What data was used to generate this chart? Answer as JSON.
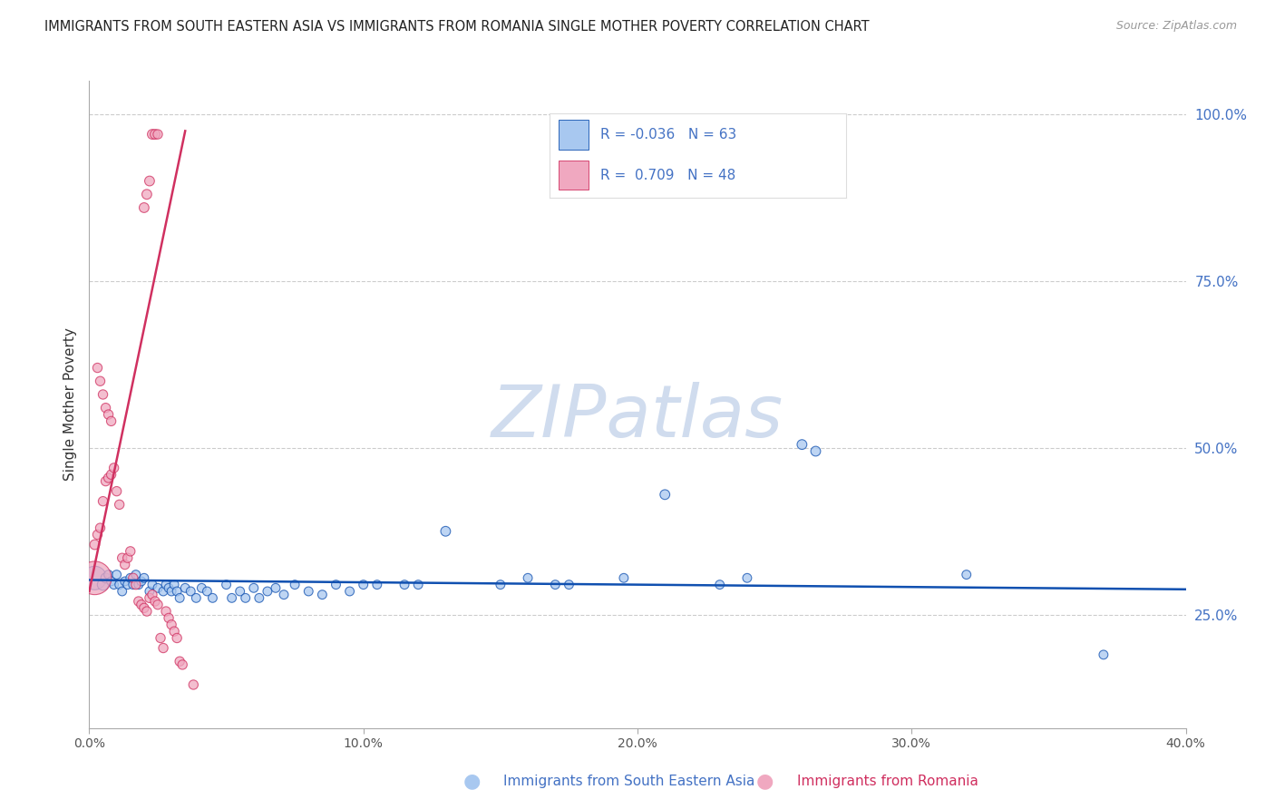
{
  "title": "IMMIGRANTS FROM SOUTH EASTERN ASIA VS IMMIGRANTS FROM ROMANIA SINGLE MOTHER POVERTY CORRELATION CHART",
  "source": "Source: ZipAtlas.com",
  "ylabel": "Single Mother Poverty",
  "legend_label1": "Immigrants from South Eastern Asia",
  "legend_label2": "Immigrants from Romania",
  "R1": -0.036,
  "N1": 63,
  "R2": 0.709,
  "N2": 48,
  "color_blue": "#A8C8F0",
  "color_pink": "#F0A8C0",
  "line_color_blue": "#1050B0",
  "line_color_pink": "#D03060",
  "watermark": "ZIPatlas",
  "watermark_color": "#D0DCEE",
  "xlim": [
    0.0,
    0.4
  ],
  "ylim": [
    0.08,
    1.05
  ],
  "xticks": [
    0.0,
    0.1,
    0.2,
    0.3,
    0.4
  ],
  "xticklabels": [
    "0.0%",
    "10.0%",
    "20.0%",
    "30.0%",
    "40.0%"
  ],
  "yticks_right": [
    0.25,
    0.5,
    0.75,
    1.0
  ],
  "ytick_labels_right": [
    "25.0%",
    "50.0%",
    "75.0%",
    "100.0%"
  ],
  "blue_points": [
    [
      0.002,
      0.305,
      350
    ],
    [
      0.005,
      0.295,
      80
    ],
    [
      0.006,
      0.305,
      60
    ],
    [
      0.007,
      0.31,
      50
    ],
    [
      0.008,
      0.3,
      50
    ],
    [
      0.009,
      0.295,
      50
    ],
    [
      0.01,
      0.31,
      50
    ],
    [
      0.011,
      0.295,
      50
    ],
    [
      0.012,
      0.285,
      50
    ],
    [
      0.013,
      0.3,
      50
    ],
    [
      0.014,
      0.295,
      50
    ],
    [
      0.015,
      0.305,
      50
    ],
    [
      0.016,
      0.295,
      50
    ],
    [
      0.017,
      0.31,
      50
    ],
    [
      0.018,
      0.295,
      50
    ],
    [
      0.019,
      0.3,
      50
    ],
    [
      0.02,
      0.305,
      50
    ],
    [
      0.022,
      0.285,
      50
    ],
    [
      0.023,
      0.295,
      50
    ],
    [
      0.025,
      0.29,
      50
    ],
    [
      0.027,
      0.285,
      50
    ],
    [
      0.028,
      0.295,
      50
    ],
    [
      0.029,
      0.29,
      50
    ],
    [
      0.03,
      0.285,
      50
    ],
    [
      0.031,
      0.295,
      50
    ],
    [
      0.032,
      0.285,
      50
    ],
    [
      0.033,
      0.275,
      50
    ],
    [
      0.035,
      0.29,
      50
    ],
    [
      0.037,
      0.285,
      50
    ],
    [
      0.039,
      0.275,
      50
    ],
    [
      0.041,
      0.29,
      50
    ],
    [
      0.043,
      0.285,
      50
    ],
    [
      0.045,
      0.275,
      50
    ],
    [
      0.05,
      0.295,
      50
    ],
    [
      0.052,
      0.275,
      50
    ],
    [
      0.055,
      0.285,
      50
    ],
    [
      0.057,
      0.275,
      50
    ],
    [
      0.06,
      0.29,
      50
    ],
    [
      0.062,
      0.275,
      50
    ],
    [
      0.065,
      0.285,
      50
    ],
    [
      0.068,
      0.29,
      50
    ],
    [
      0.071,
      0.28,
      50
    ],
    [
      0.075,
      0.295,
      50
    ],
    [
      0.08,
      0.285,
      50
    ],
    [
      0.085,
      0.28,
      50
    ],
    [
      0.09,
      0.295,
      50
    ],
    [
      0.095,
      0.285,
      50
    ],
    [
      0.1,
      0.295,
      50
    ],
    [
      0.105,
      0.295,
      50
    ],
    [
      0.115,
      0.295,
      50
    ],
    [
      0.12,
      0.295,
      50
    ],
    [
      0.13,
      0.375,
      60
    ],
    [
      0.15,
      0.295,
      50
    ],
    [
      0.16,
      0.305,
      50
    ],
    [
      0.17,
      0.295,
      50
    ],
    [
      0.175,
      0.295,
      50
    ],
    [
      0.195,
      0.305,
      50
    ],
    [
      0.21,
      0.43,
      60
    ],
    [
      0.23,
      0.295,
      50
    ],
    [
      0.24,
      0.305,
      50
    ],
    [
      0.26,
      0.505,
      60
    ],
    [
      0.265,
      0.495,
      60
    ],
    [
      0.32,
      0.31,
      50
    ],
    [
      0.37,
      0.19,
      50
    ]
  ],
  "pink_points": [
    [
      0.002,
      0.355,
      60
    ],
    [
      0.003,
      0.37,
      55
    ],
    [
      0.004,
      0.38,
      55
    ],
    [
      0.005,
      0.42,
      55
    ],
    [
      0.006,
      0.45,
      55
    ],
    [
      0.007,
      0.455,
      55
    ],
    [
      0.008,
      0.46,
      55
    ],
    [
      0.009,
      0.47,
      55
    ],
    [
      0.01,
      0.435,
      55
    ],
    [
      0.011,
      0.415,
      55
    ],
    [
      0.012,
      0.335,
      55
    ],
    [
      0.013,
      0.325,
      55
    ],
    [
      0.014,
      0.335,
      55
    ],
    [
      0.015,
      0.345,
      55
    ],
    [
      0.016,
      0.305,
      55
    ],
    [
      0.017,
      0.295,
      55
    ],
    [
      0.018,
      0.27,
      55
    ],
    [
      0.019,
      0.265,
      55
    ],
    [
      0.02,
      0.26,
      55
    ],
    [
      0.021,
      0.255,
      55
    ],
    [
      0.022,
      0.275,
      55
    ],
    [
      0.023,
      0.28,
      55
    ],
    [
      0.024,
      0.27,
      55
    ],
    [
      0.025,
      0.265,
      55
    ],
    [
      0.026,
      0.215,
      55
    ],
    [
      0.027,
      0.2,
      55
    ],
    [
      0.028,
      0.255,
      55
    ],
    [
      0.029,
      0.245,
      55
    ],
    [
      0.03,
      0.235,
      55
    ],
    [
      0.031,
      0.225,
      55
    ],
    [
      0.032,
      0.215,
      55
    ],
    [
      0.033,
      0.18,
      55
    ],
    [
      0.034,
      0.175,
      55
    ],
    [
      0.002,
      0.305,
      700
    ],
    [
      0.003,
      0.62,
      55
    ],
    [
      0.004,
      0.6,
      55
    ],
    [
      0.005,
      0.58,
      55
    ],
    [
      0.006,
      0.56,
      55
    ],
    [
      0.007,
      0.55,
      55
    ],
    [
      0.008,
      0.54,
      55
    ],
    [
      0.02,
      0.86,
      60
    ],
    [
      0.021,
      0.88,
      60
    ],
    [
      0.022,
      0.9,
      60
    ],
    [
      0.023,
      0.97,
      60
    ],
    [
      0.024,
      0.97,
      60
    ],
    [
      0.025,
      0.97,
      55
    ],
    [
      0.038,
      0.145,
      55
    ]
  ],
  "blue_trend": [
    0.0,
    0.4,
    0.302,
    0.288
  ],
  "pink_trend": [
    0.0,
    0.035,
    0.285,
    0.975
  ]
}
